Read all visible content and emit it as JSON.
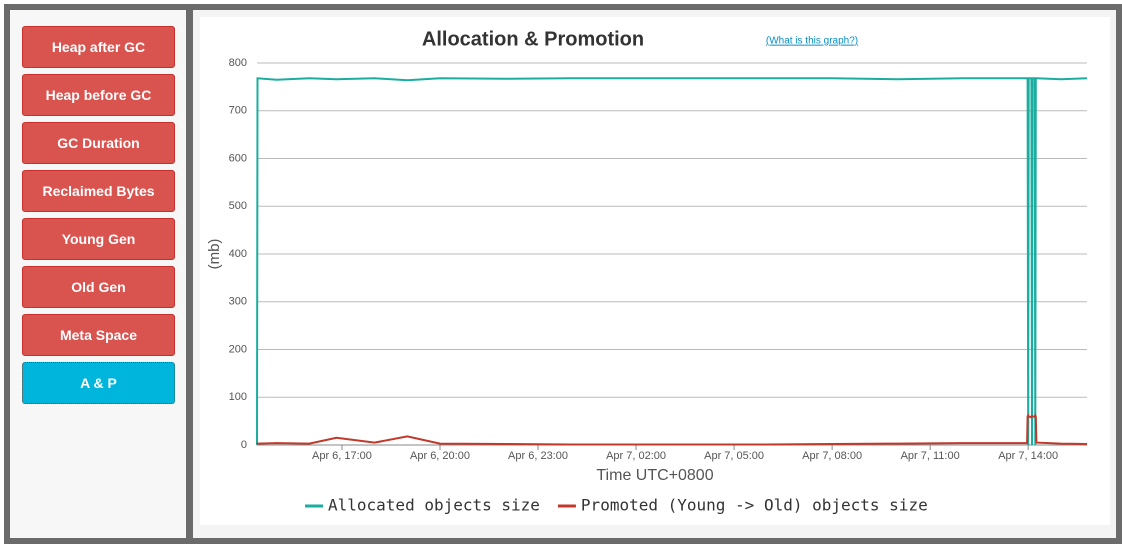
{
  "sidebar": {
    "buttons": [
      "Heap after GC",
      "Heap before GC",
      "GC Duration",
      "Reclaimed Bytes",
      "Young Gen",
      "Old Gen",
      "Meta Space",
      "A & P"
    ]
  },
  "chart_data": {
    "type": "line",
    "title": "Allocation & Promotion",
    "help_link": "(What is this graph?)",
    "xlabel": "Time UTC+0800",
    "ylabel": "(mb)",
    "x": [
      "Apr 6, 14:24",
      "Apr 6, 14:25",
      "Apr 6, 15:00",
      "Apr 6, 16:00",
      "Apr 6, 16:50",
      "Apr 6, 18:00",
      "Apr 6, 19:00",
      "Apr 6, 20:00",
      "Apr 6, 22:00",
      "Apr 7, 00:00",
      "Apr 7, 03:00",
      "Apr 7, 06:00",
      "Apr 7, 08:00",
      "Apr 7, 10:00",
      "Apr 7, 12:00",
      "Apr 7, 13:58",
      "Apr 7, 13:59",
      "Apr 7, 14:00",
      "Apr 7, 14:01",
      "Apr 7, 14:06",
      "Apr 7, 14:07",
      "Apr 7, 14:08",
      "Apr 7, 14:12",
      "Apr 7, 14:13",
      "Apr 7, 14:14",
      "Apr 7, 14:15",
      "Apr 7, 15:00",
      "Apr 7, 15:48"
    ],
    "series": [
      {
        "name": "Allocated objects size",
        "color": "#1aada0",
        "values": [
          0,
          768,
          765,
          768,
          766,
          768,
          764,
          768,
          767,
          768,
          768,
          768,
          768,
          766,
          768,
          768,
          768,
          0,
          768,
          768,
          0,
          768,
          768,
          0,
          768,
          768,
          766,
          768
        ]
      },
      {
        "name": "Promoted (Young -> Old) objects size",
        "color": "#c0392b",
        "values": [
          5,
          3,
          4,
          3,
          15,
          5,
          18,
          3,
          2,
          1,
          1,
          1,
          2,
          3,
          4,
          4,
          60,
          62,
          60,
          58,
          61,
          60,
          59,
          62,
          60,
          5,
          3,
          2
        ]
      }
    ],
    "xlim": [
      "Apr 6, 14:24",
      "Apr 7, 15:48"
    ],
    "xticks": [
      "Apr 6, 17:00",
      "Apr 6, 20:00",
      "Apr 6, 23:00",
      "Apr 7, 02:00",
      "Apr 7, 05:00",
      "Apr 7, 08:00",
      "Apr 7, 11:00",
      "Apr 7, 14:00"
    ],
    "ylim": [
      0,
      800
    ],
    "yticks": [
      0,
      100,
      200,
      300,
      400,
      500,
      600,
      700,
      800
    ],
    "grid": true
  }
}
